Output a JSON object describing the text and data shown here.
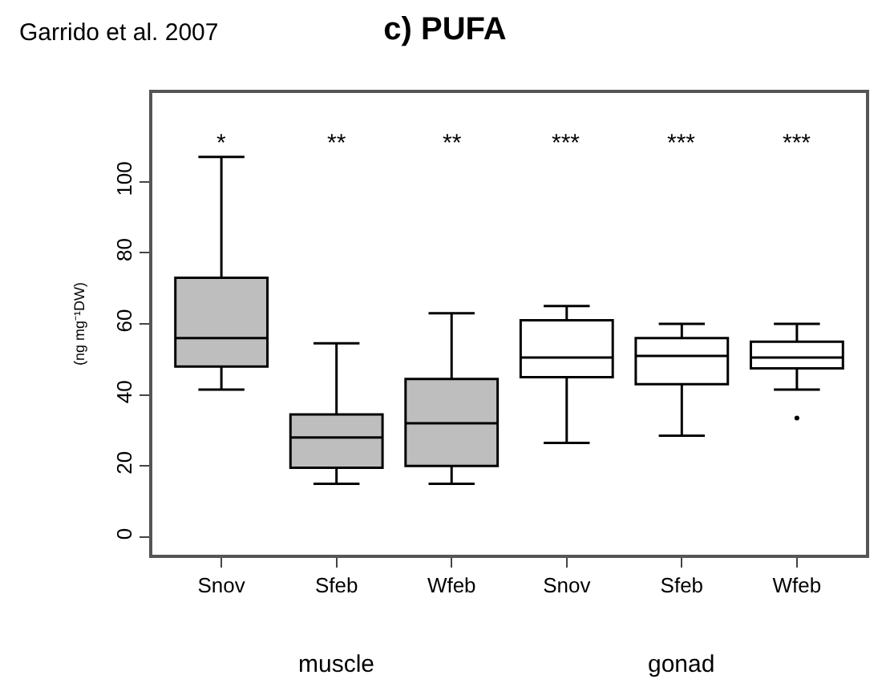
{
  "chart_data": {
    "type": "box",
    "title": "c) PUFA",
    "ylabel": "(ng mg⁻¹DW)",
    "categories": [
      "Snov",
      "Sfeb",
      "Wfeb",
      "Snov",
      "Sfeb",
      "Wfeb"
    ],
    "boxes": [
      {
        "low": 41.5,
        "q1": 48,
        "median": 56,
        "q3": 73,
        "high": 107
      },
      {
        "low": 15,
        "q1": 19.5,
        "median": 28,
        "q3": 34.5,
        "high": 54.5
      },
      {
        "low": 15,
        "q1": 20,
        "median": 32,
        "q3": 44.5,
        "high": 63
      },
      {
        "low": 26.5,
        "q1": 45,
        "median": 50.5,
        "q3": 61,
        "high": 65
      },
      {
        "low": 28.5,
        "q1": 43,
        "median": 51,
        "q3": 56,
        "high": 60
      },
      {
        "low": 41.5,
        "q1": 47.5,
        "median": 50.5,
        "q3": 55,
        "high": 60,
        "outliers": [
          33.5
        ]
      }
    ],
    "colors": [
      "#bebebe",
      "#bebebe",
      "#bebebe",
      "#ffffff",
      "#ffffff",
      "#ffffff"
    ],
    "ylim": [
      -5,
      125
    ],
    "yticks": [
      0,
      20,
      40,
      60,
      80,
      100
    ],
    "annotations": [
      "Garrido et al. 2007",
      "muscle",
      "gonad",
      "*",
      "**",
      "**",
      "***",
      "***",
      "***"
    ]
  }
}
